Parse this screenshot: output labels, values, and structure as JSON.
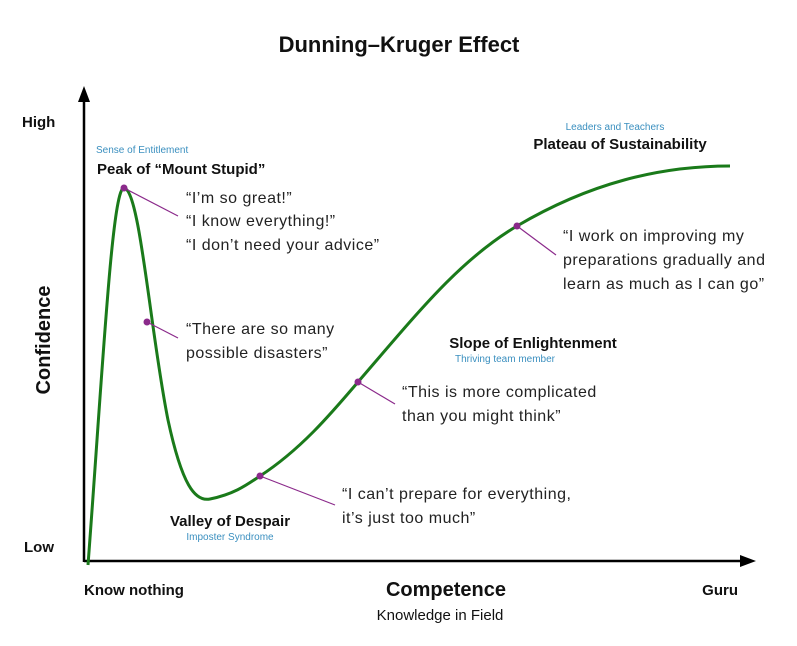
{
  "title": "Dunning–Kruger Effect",
  "axes": {
    "y_label": "Confidence",
    "y_high": "High",
    "y_low": "Low",
    "x_label": "Competence",
    "x_sublabel": "Knowledge in Field",
    "x_low": "Know nothing",
    "x_high": "Guru"
  },
  "stages": [
    {
      "name": "Peak of “Mount Stupid”",
      "subtitle": "Sense of Entitlement"
    },
    {
      "name": "Valley of Despair",
      "subtitle": "Imposter Syndrome"
    },
    {
      "name": "Slope of Enlightenment",
      "subtitle": "Thriving team member"
    },
    {
      "name": "Plateau of Sustainability",
      "subtitle": "Leaders and Teachers"
    }
  ],
  "quotes": [
    [
      "“I’m so great!”",
      "“I know everything!”",
      "“I don’t need your advice”"
    ],
    [
      "“There are so many",
      "possible disasters”"
    ],
    [
      "“I can’t prepare for everything,",
      "it’s just too much”"
    ],
    [
      "“This is more complicated",
      "than you might think”"
    ],
    [
      "“I work on improving my",
      "preparations gradually and",
      "learn as much as I can go”"
    ]
  ]
}
